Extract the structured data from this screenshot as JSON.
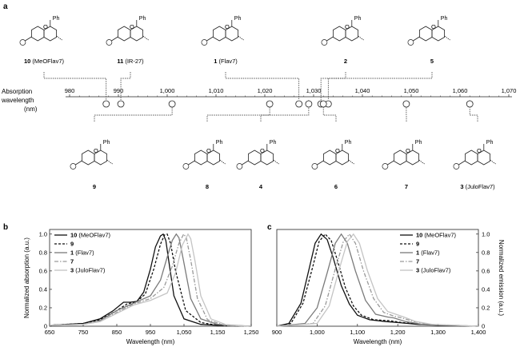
{
  "panel_a": {
    "label": "a",
    "axis_label_lines": [
      "Absorption",
      "wavelength",
      "(nm)"
    ],
    "ticks": [
      980,
      990,
      1000,
      1010,
      1020,
      1030,
      1040,
      1050,
      1060,
      1070
    ],
    "tick_labels": [
      "980",
      "990",
      "1,000",
      "1,010",
      "1,020",
      "1,030",
      "1,040",
      "1,050",
      "1,060",
      "1,070"
    ],
    "compounds_top": [
      {
        "id": "10",
        "name": "(MeOFlav7)",
        "abs": 987.5,
        "label_x": 55
      },
      {
        "id": "11",
        "name": "(IR-27)",
        "abs": 990.5,
        "label_x": 163
      },
      {
        "id": "1",
        "name": "(Flav7)",
        "abs": 1027,
        "label_x": 282
      },
      {
        "id": "2",
        "name": "",
        "abs": 1031.5,
        "label_x": 432
      },
      {
        "id": "5",
        "name": "",
        "abs": 1033,
        "label_x": 540
      }
    ],
    "compounds_bottom": [
      {
        "id": "9",
        "name": "",
        "abs": 1001,
        "label_x": 118
      },
      {
        "id": "8",
        "name": "",
        "abs": 1021,
        "label_x": 259
      },
      {
        "id": "4",
        "name": "",
        "abs": 1029,
        "label_x": 326
      },
      {
        "id": "6",
        "name": "",
        "abs": 1032,
        "label_x": 420
      },
      {
        "id": "7",
        "name": "",
        "abs": 1049,
        "label_x": 508
      },
      {
        "id": "3",
        "name": "(JuloFlav7)",
        "abs": 1062,
        "label_x": 597
      }
    ],
    "ph_label": "Ph"
  },
  "chart_data": [
    {
      "panel": "b",
      "type": "line",
      "xlabel": "Wavelength (nm)",
      "ylabel": "Normalized absorption (a.u.)",
      "xlim": [
        650,
        1250
      ],
      "ylim": [
        0,
        1.05
      ],
      "xticks": [
        650,
        750,
        850,
        950,
        1050,
        1150,
        1250
      ],
      "xtick_labels": [
        "650",
        "750",
        "850",
        "950",
        "1,050",
        "1,150",
        "1,250"
      ],
      "yticks": [
        0,
        0.2,
        0.4,
        0.6,
        0.8,
        1.0
      ],
      "ytick_labels": [
        "0",
        "0.2",
        "0.4",
        "0.6",
        "0.8",
        "1.0"
      ],
      "legend_position": "top-left",
      "series": [
        {
          "id": "10",
          "name": "(MeOFlav7)",
          "style": "solid",
          "color": "#111111",
          "x": [
            650,
            750,
            800,
            840,
            870,
            890,
            910,
            930,
            950,
            965,
            980,
            988,
            996,
            1005,
            1020,
            1050,
            1100,
            1150,
            1250
          ],
          "y": [
            0.01,
            0.03,
            0.08,
            0.17,
            0.26,
            0.26,
            0.27,
            0.37,
            0.62,
            0.86,
            0.98,
            1.0,
            0.93,
            0.7,
            0.33,
            0.08,
            0.02,
            0.01,
            0.0
          ]
        },
        {
          "id": "9",
          "name": "",
          "style": "dashed",
          "color": "#111111",
          "x": [
            650,
            750,
            800,
            850,
            880,
            910,
            935,
            960,
            980,
            992,
            1000,
            1010,
            1025,
            1055,
            1100,
            1150,
            1250
          ],
          "y": [
            0.01,
            0.03,
            0.07,
            0.17,
            0.24,
            0.27,
            0.35,
            0.62,
            0.89,
            0.99,
            1.0,
            0.9,
            0.6,
            0.17,
            0.04,
            0.01,
            0.0
          ]
        },
        {
          "id": "1",
          "name": "(Flav7)",
          "style": "solid",
          "color": "#7a7a7a",
          "x": [
            650,
            750,
            800,
            850,
            900,
            950,
            980,
            1000,
            1015,
            1027,
            1035,
            1048,
            1070,
            1100,
            1150,
            1250
          ],
          "y": [
            0.01,
            0.02,
            0.06,
            0.17,
            0.25,
            0.33,
            0.5,
            0.75,
            0.93,
            1.0,
            0.96,
            0.72,
            0.3,
            0.08,
            0.02,
            0.0
          ]
        },
        {
          "id": "7",
          "name": "",
          "style": "dashdot",
          "color": "#9a9a9a",
          "x": [
            650,
            750,
            800,
            850,
            900,
            950,
            990,
            1015,
            1035,
            1049,
            1057,
            1070,
            1090,
            1120,
            1170,
            1250
          ],
          "y": [
            0.01,
            0.02,
            0.05,
            0.15,
            0.24,
            0.3,
            0.42,
            0.65,
            0.9,
            1.0,
            0.96,
            0.72,
            0.3,
            0.07,
            0.01,
            0.0
          ]
        },
        {
          "id": "3",
          "name": "(JuloFlav7)",
          "style": "solid",
          "color": "#c4c4c4",
          "x": [
            650,
            750,
            800,
            850,
            900,
            950,
            1000,
            1025,
            1045,
            1062,
            1070,
            1083,
            1100,
            1130,
            1180,
            1250
          ],
          "y": [
            0.01,
            0.02,
            0.05,
            0.14,
            0.23,
            0.28,
            0.36,
            0.58,
            0.88,
            1.0,
            0.95,
            0.7,
            0.33,
            0.08,
            0.01,
            0.0
          ]
        }
      ]
    },
    {
      "panel": "c",
      "type": "line",
      "xlabel": "Wavelength (nm)",
      "ylabel": "Normalized emission (a.u.)",
      "xlim": [
        900,
        1400
      ],
      "ylim": [
        0,
        1.05
      ],
      "xticks": [
        900,
        1000,
        1100,
        1200,
        1300,
        1400
      ],
      "xtick_labels": [
        "900",
        "1,000",
        "1,100",
        "1,200",
        "1,300",
        "1,400"
      ],
      "yticks": [
        0,
        0.2,
        0.4,
        0.6,
        0.8,
        1.0
      ],
      "ytick_labels": [
        "0",
        "0.2",
        "0.4",
        "0.6",
        "0.8",
        "1.0"
      ],
      "legend_position": "top-right",
      "series": [
        {
          "id": "10",
          "name": "(MeOFlav7)",
          "style": "solid",
          "color": "#111111",
          "x": [
            900,
            930,
            960,
            980,
            995,
            1010,
            1025,
            1040,
            1060,
            1080,
            1100,
            1130,
            1170,
            1200,
            1250,
            1300,
            1400
          ],
          "y": [
            0.0,
            0.03,
            0.25,
            0.62,
            0.9,
            1.0,
            0.94,
            0.74,
            0.44,
            0.24,
            0.12,
            0.07,
            0.05,
            0.04,
            0.02,
            0.01,
            0.0
          ]
        },
        {
          "id": "9",
          "name": "",
          "style": "dashed",
          "color": "#111111",
          "x": [
            900,
            935,
            965,
            990,
            1005,
            1020,
            1035,
            1050,
            1070,
            1090,
            1110,
            1140,
            1180,
            1210,
            1260,
            1310,
            1400
          ],
          "y": [
            0.0,
            0.03,
            0.25,
            0.66,
            0.92,
            1.0,
            0.93,
            0.72,
            0.42,
            0.22,
            0.12,
            0.07,
            0.06,
            0.04,
            0.02,
            0.01,
            0.0
          ]
        },
        {
          "id": "1",
          "name": "(Flav7)",
          "style": "solid",
          "color": "#7a7a7a",
          "x": [
            900,
            970,
            1000,
            1025,
            1045,
            1060,
            1075,
            1095,
            1120,
            1145,
            1175,
            1190,
            1220,
            1260,
            1320,
            1400
          ],
          "y": [
            0.0,
            0.03,
            0.2,
            0.58,
            0.9,
            1.0,
            0.9,
            0.6,
            0.28,
            0.13,
            0.1,
            0.09,
            0.05,
            0.02,
            0.01,
            0.0
          ]
        },
        {
          "id": "7",
          "name": "",
          "style": "dashdot",
          "color": "#9a9a9a",
          "x": [
            900,
            990,
            1020,
            1045,
            1065,
            1080,
            1095,
            1115,
            1140,
            1165,
            1190,
            1210,
            1240,
            1280,
            1340,
            1400
          ],
          "y": [
            0.0,
            0.03,
            0.22,
            0.62,
            0.92,
            1.0,
            0.9,
            0.6,
            0.3,
            0.15,
            0.11,
            0.09,
            0.05,
            0.02,
            0.01,
            0.0
          ]
        },
        {
          "id": "3",
          "name": "(JuloFlav7)",
          "style": "solid",
          "color": "#c4c4c4",
          "x": [
            900,
            1000,
            1030,
            1055,
            1075,
            1090,
            1105,
            1125,
            1150,
            1175,
            1195,
            1215,
            1245,
            1285,
            1345,
            1400
          ],
          "y": [
            0.0,
            0.03,
            0.22,
            0.62,
            0.92,
            1.0,
            0.9,
            0.6,
            0.3,
            0.16,
            0.13,
            0.1,
            0.05,
            0.02,
            0.01,
            0.0
          ]
        }
      ]
    }
  ]
}
